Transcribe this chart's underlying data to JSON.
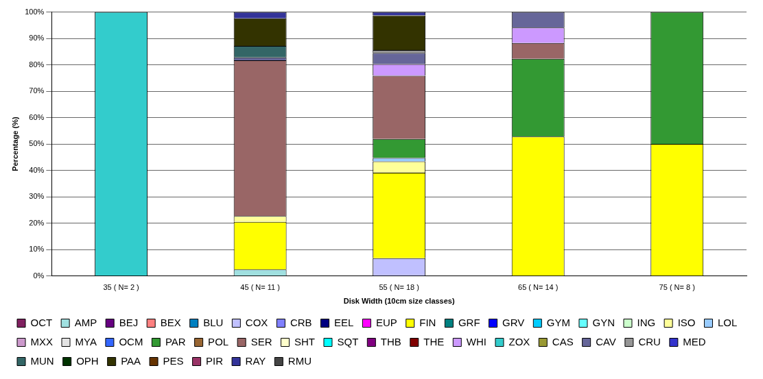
{
  "chart_data": {
    "type": "bar",
    "stacked": true,
    "xlabel": "Disk Width (10cm size classes)",
    "ylabel": "Percentage (%)",
    "categories": [
      "35 ( N= 2 )",
      "45 ( N= 11 )",
      "55 ( N= 18 )",
      "65 ( N= 14 )",
      "75 ( N= 8 )"
    ],
    "ylim": [
      0,
      100
    ],
    "yticks": [
      {
        "value": 0,
        "label": "0%"
      },
      {
        "value": 10,
        "label": "10%"
      },
      {
        "value": 20,
        "label": "20%"
      },
      {
        "value": 30,
        "label": "30%"
      },
      {
        "value": 40,
        "label": "40%"
      },
      {
        "value": 50,
        "label": "50%"
      },
      {
        "value": 60,
        "label": "60%"
      },
      {
        "value": 70,
        "label": "70%"
      },
      {
        "value": 80,
        "label": "80%"
      },
      {
        "value": 90,
        "label": "90%"
      },
      {
        "value": 100,
        "label": "100%"
      }
    ],
    "grid": "y",
    "legend": "bottom",
    "series": [
      {
        "name": "OCT",
        "color": "#802060",
        "values": [
          null,
          null,
          null,
          null,
          null
        ]
      },
      {
        "name": "AMP",
        "color": "#a0e0e0",
        "values": [
          null,
          2.4,
          null,
          null,
          null
        ]
      },
      {
        "name": "BEJ",
        "color": "#660080",
        "values": [
          null,
          null,
          null,
          null,
          null
        ]
      },
      {
        "name": "BEX",
        "color": "#ff8080",
        "values": [
          null,
          null,
          null,
          null,
          null
        ]
      },
      {
        "name": "BLU",
        "color": "#0080c0",
        "values": [
          null,
          null,
          null,
          null,
          null
        ]
      },
      {
        "name": "COX",
        "color": "#c0c0ff",
        "values": [
          null,
          null,
          6.7,
          null,
          null
        ]
      },
      {
        "name": "CRB",
        "color": "#8080ff",
        "values": [
          null,
          null,
          null,
          null,
          null
        ]
      },
      {
        "name": "EEL",
        "color": "#000080",
        "values": [
          null,
          null,
          null,
          null,
          null
        ]
      },
      {
        "name": "EUP",
        "color": "#ff00ff",
        "values": [
          null,
          null,
          null,
          null,
          null
        ]
      },
      {
        "name": "FIN",
        "color": "#ffff00",
        "values": [
          null,
          18.1,
          32.4,
          52.8,
          50
        ]
      },
      {
        "name": "GRF",
        "color": "#008080",
        "values": [
          null,
          null,
          null,
          null,
          null
        ]
      },
      {
        "name": "GRV",
        "color": "#0000ff",
        "values": [
          null,
          null,
          null,
          null,
          null
        ]
      },
      {
        "name": "GYM",
        "color": "#00ccff",
        "values": [
          null,
          null,
          null,
          null,
          null
        ]
      },
      {
        "name": "GYN",
        "color": "#66ffff",
        "values": [
          null,
          null,
          null,
          null,
          null
        ]
      },
      {
        "name": "ING",
        "color": "#ccffcc",
        "values": [
          null,
          null,
          null,
          null,
          null
        ]
      },
      {
        "name": "ISO",
        "color": "#ffff99",
        "values": [
          null,
          2.2,
          4.3,
          null,
          null
        ]
      },
      {
        "name": "LOL",
        "color": "#99ccff",
        "values": [
          null,
          null,
          1.3,
          null,
          null
        ]
      },
      {
        "name": "MXX",
        "color": "#cc99cc",
        "values": [
          null,
          null,
          null,
          null,
          null
        ]
      },
      {
        "name": "MYA",
        "color": "#e3e3e3",
        "values": [
          null,
          null,
          null,
          null,
          null
        ]
      },
      {
        "name": "OCM",
        "color": "#3366ff",
        "values": [
          null,
          null,
          null,
          null,
          null
        ]
      },
      {
        "name": "PAR",
        "color": "#339933",
        "values": [
          null,
          null,
          7.2,
          29.5,
          50
        ]
      },
      {
        "name": "POL",
        "color": "#996633",
        "values": [
          null,
          null,
          null,
          null,
          null
        ]
      },
      {
        "name": "SER",
        "color": "#996666",
        "values": [
          null,
          59,
          24,
          6,
          null
        ]
      },
      {
        "name": "SHT",
        "color": "#ffffcc",
        "values": [
          null,
          null,
          null,
          null,
          null
        ]
      },
      {
        "name": "SQT",
        "color": "#00ffff",
        "values": [
          null,
          null,
          null,
          null,
          null
        ]
      },
      {
        "name": "THB",
        "color": "#800080",
        "values": [
          null,
          null,
          null,
          null,
          null
        ]
      },
      {
        "name": "THE",
        "color": "#800000",
        "values": [
          null,
          null,
          null,
          null,
          null
        ]
      },
      {
        "name": "WHI",
        "color": "#cc99ff",
        "values": [
          null,
          null,
          4.4,
          5.8,
          null
        ]
      },
      {
        "name": "ZOX",
        "color": "#33cccc",
        "values": [
          100,
          null,
          null,
          null,
          null
        ]
      },
      {
        "name": "CAS",
        "color": "#999933",
        "values": [
          null,
          null,
          null,
          null,
          null
        ]
      },
      {
        "name": "CAV",
        "color": "#666699",
        "values": [
          null,
          1.1,
          4.2,
          5.9,
          null
        ]
      },
      {
        "name": "CRU",
        "color": "#969696",
        "values": [
          null,
          null,
          1.1,
          null,
          null
        ]
      },
      {
        "name": "MED",
        "color": "#3333cc",
        "values": [
          null,
          null,
          null,
          null,
          null
        ]
      },
      {
        "name": "MUN",
        "color": "#336666",
        "values": [
          null,
          4.4,
          null,
          null,
          null
        ]
      },
      {
        "name": "OPH",
        "color": "#003300",
        "values": [
          null,
          null,
          null,
          null,
          null
        ]
      },
      {
        "name": "PAA",
        "color": "#333300",
        "values": [
          null,
          10.4,
          13.1,
          null,
          null
        ]
      },
      {
        "name": "PES",
        "color": "#663300",
        "values": [
          null,
          null,
          null,
          null,
          null
        ]
      },
      {
        "name": "PIR",
        "color": "#993366",
        "values": [
          null,
          null,
          null,
          null,
          null
        ]
      },
      {
        "name": "RAY",
        "color": "#333399",
        "values": [
          null,
          2.4,
          1.3,
          null,
          null
        ]
      },
      {
        "name": "RMU",
        "color": "#444444",
        "values": [
          null,
          null,
          null,
          null,
          null
        ]
      }
    ]
  }
}
